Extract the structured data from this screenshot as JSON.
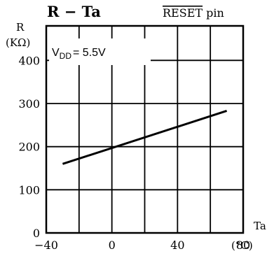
{
  "chart_data": {
    "type": "line",
    "title": "R − Ta",
    "subtitle_pin": "RESET",
    "subtitle_suffix": " pin",
    "ylabel_top": "R",
    "ylabel_unit": "(KΩ)",
    "xlabel_top": "Ta",
    "xlabel_unit": "(°C)",
    "annotation": {
      "prefix": "V",
      "sub": "DD",
      "suffix": "= 5.5V"
    },
    "xlim": [
      -40,
      80
    ],
    "ylim": [
      0,
      480
    ],
    "grid": true,
    "x_ticks": [
      -40,
      0,
      40,
      80
    ],
    "x_tick_labels": [
      "−40",
      "0",
      "40",
      "80"
    ],
    "y_ticks": [
      0,
      100,
      200,
      300,
      400
    ],
    "y_tick_labels": [
      "0",
      "100",
      "200",
      "300",
      "400"
    ],
    "series": [
      {
        "x": [
          -30,
          70
        ],
        "y": [
          160,
          283
        ]
      }
    ]
  }
}
